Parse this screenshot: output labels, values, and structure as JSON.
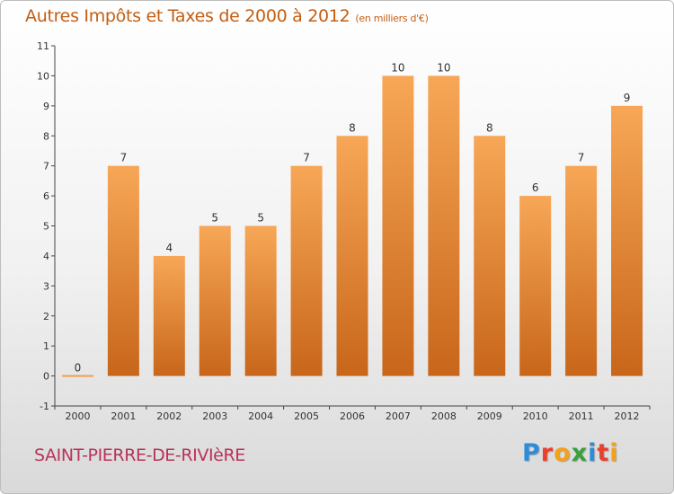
{
  "title": {
    "main": "Autres Impôts et Taxes de 2000 à 2012",
    "unit": "(en milliers d'€)"
  },
  "commune": "SAINT-PIERRE-DE-RIVIèRE",
  "brand": {
    "letters": [
      "P",
      "r",
      "o",
      "x",
      "i",
      "t",
      "i"
    ],
    "colors": [
      "#2e8bd6",
      "#e8422f",
      "#f2a11b",
      "#3aa03a",
      "#2e8bd6",
      "#e8422f",
      "#f2a11b"
    ]
  },
  "colors": {
    "bar_top": "#f7a757",
    "bar_bottom": "#c8661a",
    "zero_line": "#f0a050"
  },
  "chart_data": {
    "type": "bar",
    "categories": [
      "2000",
      "2001",
      "2002",
      "2003",
      "2004",
      "2005",
      "2006",
      "2007",
      "2008",
      "2009",
      "2010",
      "2011",
      "2012"
    ],
    "values": [
      0,
      7,
      4,
      5,
      5,
      7,
      8,
      10,
      10,
      8,
      6,
      7,
      9
    ],
    "data_labels": [
      "0",
      "7",
      "4",
      "5",
      "5",
      "7",
      "8",
      "10",
      "10",
      "8",
      "6",
      "7",
      "9"
    ],
    "y_ticks": [
      {
        "value": -1,
        "label": "-1"
      },
      {
        "value": 0,
        "label": "0"
      },
      {
        "value": 1,
        "label": "1"
      },
      {
        "value": 2,
        "label": "2"
      },
      {
        "value": 3,
        "label": "3"
      },
      {
        "value": 4,
        "label": "4"
      },
      {
        "value": 5,
        "label": "5"
      },
      {
        "value": 6,
        "label": "6"
      },
      {
        "value": 7,
        "label": "7"
      },
      {
        "value": 8,
        "label": "8"
      },
      {
        "value": 9,
        "label": "9"
      },
      {
        "value": 10,
        "label": "10"
      },
      {
        "value": 11,
        "label": "11"
      }
    ],
    "ylim": [
      -1,
      11
    ],
    "grid": false,
    "legend": "none",
    "xlabel": "",
    "ylabel": ""
  }
}
